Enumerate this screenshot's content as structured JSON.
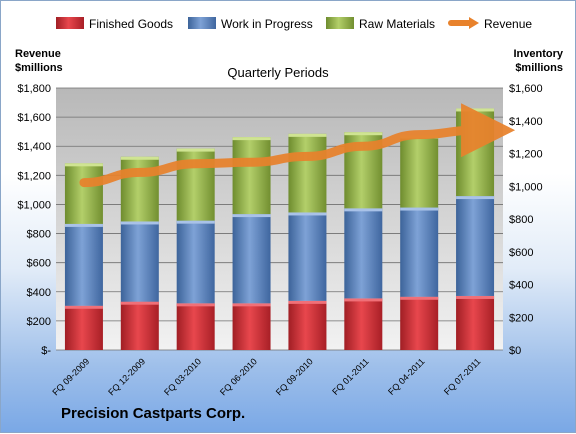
{
  "chart_data": {
    "type": "bar",
    "stacked": true,
    "title": "Quarterly Periods",
    "company": "Precision Castparts Corp.",
    "left_axis_label": [
      "Revenue",
      "$millions"
    ],
    "right_axis_label": [
      "Inventory",
      "$millions"
    ],
    "categories": [
      "FQ 09-2009",
      "FQ 12-2009",
      "FQ 03-2010",
      "FQ 06-2010",
      "FQ 09-2010",
      "FQ 01-2011",
      "FQ 04-2011",
      "FQ 07-2011"
    ],
    "left_axis": {
      "min": 0,
      "max": 1800,
      "step": 200,
      "ticks": [
        "$-",
        "$200",
        "$400",
        "$600",
        "$800",
        "$1,000",
        "$1,200",
        "$1,400",
        "$1,600",
        "$1,800"
      ]
    },
    "right_axis": {
      "min": 0,
      "max": 1600,
      "step": 200,
      "ticks": [
        "$0",
        "$200",
        "$400",
        "$600",
        "$800",
        "$1,000",
        "$1,200",
        "$1,400",
        "$1,600"
      ]
    },
    "series": [
      {
        "name": "Finished Goods",
        "axis": "right",
        "color": "#c0262d",
        "values": [
          270,
          295,
          285,
          285,
          300,
          315,
          325,
          330
        ]
      },
      {
        "name": "Work in Progress",
        "axis": "right",
        "color": "#4d78b4",
        "values": [
          500,
          490,
          505,
          545,
          540,
          550,
          545,
          610
        ]
      },
      {
        "name": "Raw Materials",
        "axis": "right",
        "color": "#8db043",
        "values": [
          370,
          395,
          440,
          470,
          480,
          465,
          440,
          535
        ]
      },
      {
        "name": "Revenue",
        "axis": "left",
        "type": "line",
        "color": "#e8822c",
        "values": [
          1150,
          1220,
          1280,
          1290,
          1330,
          1400,
          1480,
          1510
        ]
      }
    ],
    "grid": true,
    "legend": "top"
  }
}
